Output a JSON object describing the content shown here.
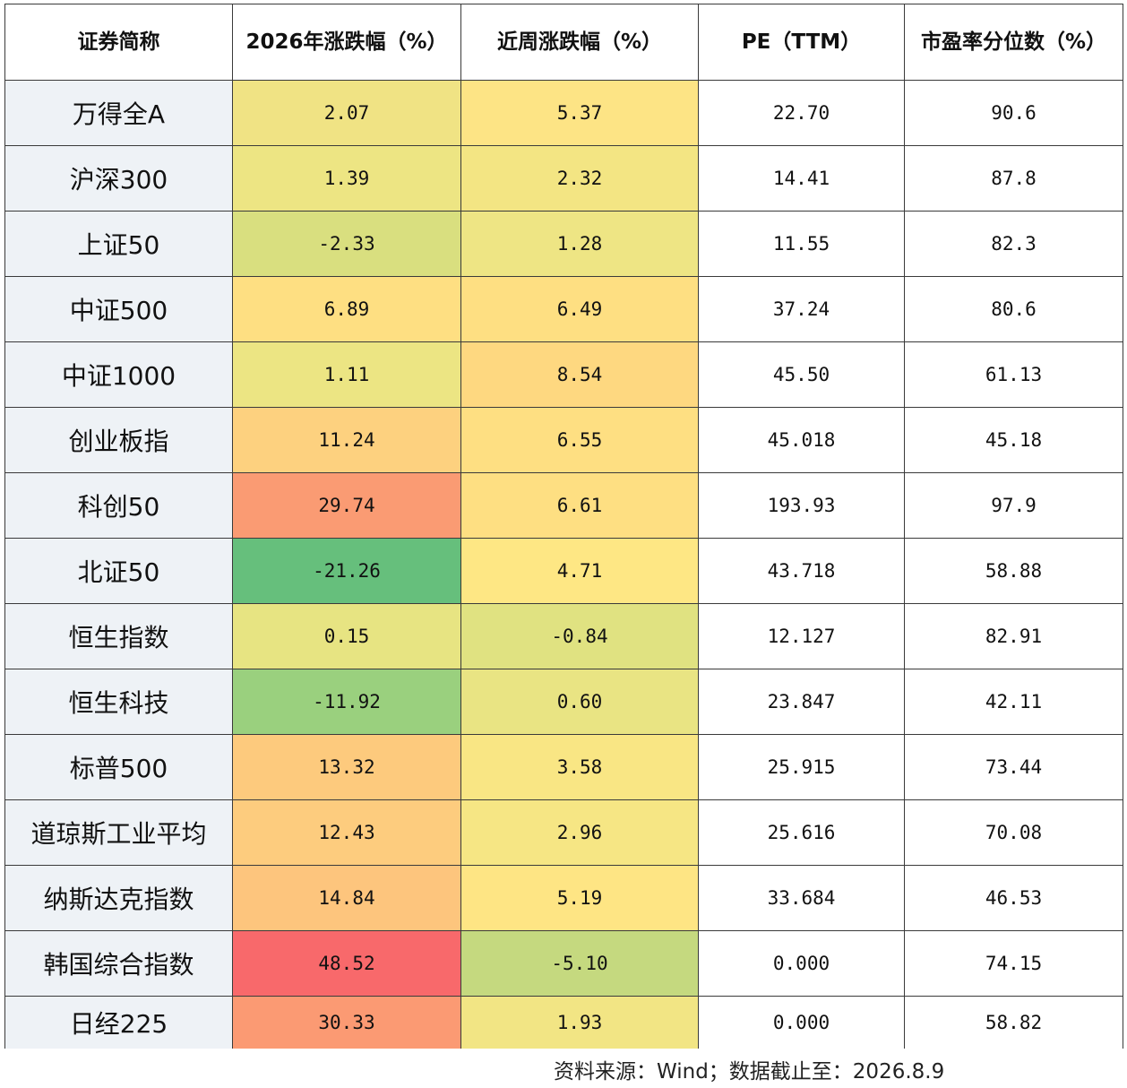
{
  "table": {
    "headers": [
      "证券简称",
      "2026年涨跌幅（%）",
      "近周涨跌幅（%）",
      "PE（TTM）",
      "市盈率分位数（%）"
    ],
    "rows": [
      {
        "name": "万得全A",
        "ytd": "2.07",
        "week": "5.37",
        "pe": "22.70",
        "pct": "90.6",
        "ytd_color": "#f0e384",
        "week_color": "#fde485"
      },
      {
        "name": "沪深300",
        "ytd": "1.39",
        "week": "2.32",
        "pe": "14.41",
        "pct": "87.8",
        "ytd_color": "#ede583",
        "week_color": "#f3e583"
      },
      {
        "name": "上证50",
        "ytd": "-2.33",
        "week": "1.28",
        "pe": "11.55",
        "pct": "82.3",
        "ytd_color": "#d9df7f",
        "week_color": "#eee584"
      },
      {
        "name": "中证500",
        "ytd": "6.89",
        "week": "6.49",
        "pe": "37.24",
        "pct": "80.6",
        "ytd_color": "#fedf82",
        "week_color": "#fedf82"
      },
      {
        "name": "中证1000",
        "ytd": "1.11",
        "week": "8.54",
        "pe": "45.50",
        "pct": "61.13",
        "ytd_color": "#ece583",
        "week_color": "#fed880"
      },
      {
        "name": "创业板指",
        "ytd": "11.24",
        "week": "6.55",
        "pe": "45.018",
        "pct": "45.18",
        "ytd_color": "#fdd17f",
        "week_color": "#fedf82"
      },
      {
        "name": "科创50",
        "ytd": "29.74",
        "week": "6.61",
        "pe": "193.93",
        "pct": "97.9",
        "ytd_color": "#fa9b73",
        "week_color": "#fedf82"
      },
      {
        "name": "北证50",
        "ytd": "-21.26",
        "week": "4.71",
        "pe": "43.718",
        "pct": "58.88",
        "ytd_color": "#66bf7c",
        "week_color": "#fee784"
      },
      {
        "name": "恒生指数",
        "ytd": "0.15",
        "week": "-0.84",
        "pe": "12.127",
        "pct": "82.91",
        "ytd_color": "#e7e482",
        "week_color": "#e0e281"
      },
      {
        "name": "恒生科技",
        "ytd": "-11.92",
        "week": "0.60",
        "pe": "23.847",
        "pct": "42.11",
        "ytd_color": "#9ad07e",
        "week_color": "#e9e483"
      },
      {
        "name": "标普500",
        "ytd": "13.32",
        "week": "3.58",
        "pe": "25.915",
        "pct": "73.44",
        "ytd_color": "#fdca7d",
        "week_color": "#f9e684"
      },
      {
        "name": "道琼斯工业平均",
        "ytd": "12.43",
        "week": "2.96",
        "pe": "25.616",
        "pct": "70.08",
        "ytd_color": "#fdcc7e",
        "week_color": "#f6e684"
      },
      {
        "name": "纳斯达克指数",
        "ytd": "14.84",
        "week": "5.19",
        "pe": "33.684",
        "pct": "46.53",
        "ytd_color": "#fdc57d",
        "week_color": "#fee584"
      },
      {
        "name": "韩国综合指数",
        "ytd": "48.52",
        "week": "-5.10",
        "pe": "0.000",
        "pct": "74.15",
        "ytd_color": "#f8696b",
        "week_color": "#c5d97f"
      },
      {
        "name": "日经225",
        "ytd": "30.33",
        "week": "1.93",
        "pe": "0.000",
        "pct": "58.82",
        "ytd_color": "#fb9a73",
        "week_color": "#f2e584"
      }
    ]
  },
  "footer": {
    "source": "资料来源：Wind；数据截止至：2026.8.9"
  }
}
